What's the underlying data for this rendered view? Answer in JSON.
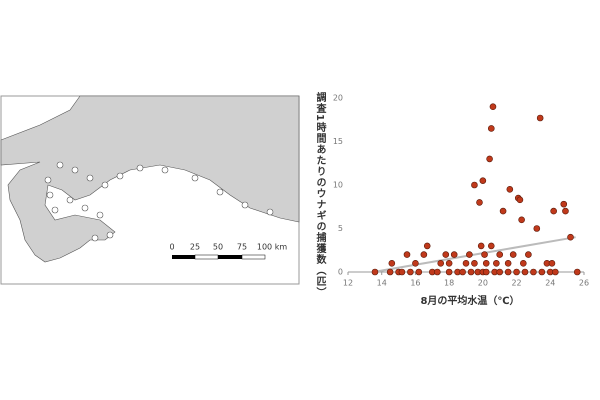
{
  "map": {
    "scale_labels": [
      "0",
      "25",
      "50",
      "75",
      "100 km"
    ]
  },
  "chart_data": {
    "type": "scatter",
    "x_label": "8月の平均水温（℃）",
    "y_label": "調査1時間あたりのウナギの捕獲数（匹）",
    "x": [
      13.6,
      14.5,
      14.6,
      15,
      15.2,
      15.5,
      15.7,
      16,
      16.2,
      16.5,
      16.7,
      17,
      17.3,
      17.5,
      17.8,
      18,
      18,
      18.3,
      18.5,
      18.8,
      19,
      19.2,
      19.3,
      19.5,
      19.5,
      19.7,
      19.8,
      19.9,
      20,
      20,
      20.1,
      20.2,
      20.2,
      20.4,
      20.5,
      20.6,
      20.5,
      20.7,
      20.8,
      21,
      21,
      21.2,
      21.5,
      21.5,
      21.6,
      21.8,
      22,
      22.1,
      22.2,
      22.3,
      22.4,
      22.5,
      22.7,
      23,
      23.2,
      23.4,
      23.5,
      23.8,
      24,
      24.1,
      24.2,
      24.3,
      24.8,
      24.9,
      25.2,
      25.6
    ],
    "values": [
      0,
      0,
      1,
      0,
      0,
      2,
      0,
      1,
      0,
      2,
      3,
      0,
      0,
      1,
      2,
      0,
      1,
      2,
      0,
      0,
      1,
      2,
      0,
      10,
      1,
      0,
      8,
      3,
      0,
      10.5,
      2,
      0,
      1,
      13,
      16.5,
      19,
      3,
      0,
      1,
      0,
      2,
      7,
      0,
      1,
      9.5,
      2,
      0,
      8.5,
      8.3,
      6,
      1,
      0,
      2,
      0,
      5,
      17.7,
      0,
      1,
      0,
      1,
      7,
      0,
      7.8,
      7,
      4,
      0
    ],
    "color": "#c0391b",
    "trendline": {
      "x": [
        13.5,
        25.5
      ],
      "values": [
        0,
        4
      ],
      "color": "#bbbbbb"
    },
    "xlim": [
      12,
      26
    ],
    "xticks": [
      12,
      14,
      16,
      18,
      20,
      22,
      24,
      26
    ],
    "ylim": [
      0,
      20
    ],
    "yticks": [
      0,
      5,
      10,
      15,
      20
    ]
  }
}
